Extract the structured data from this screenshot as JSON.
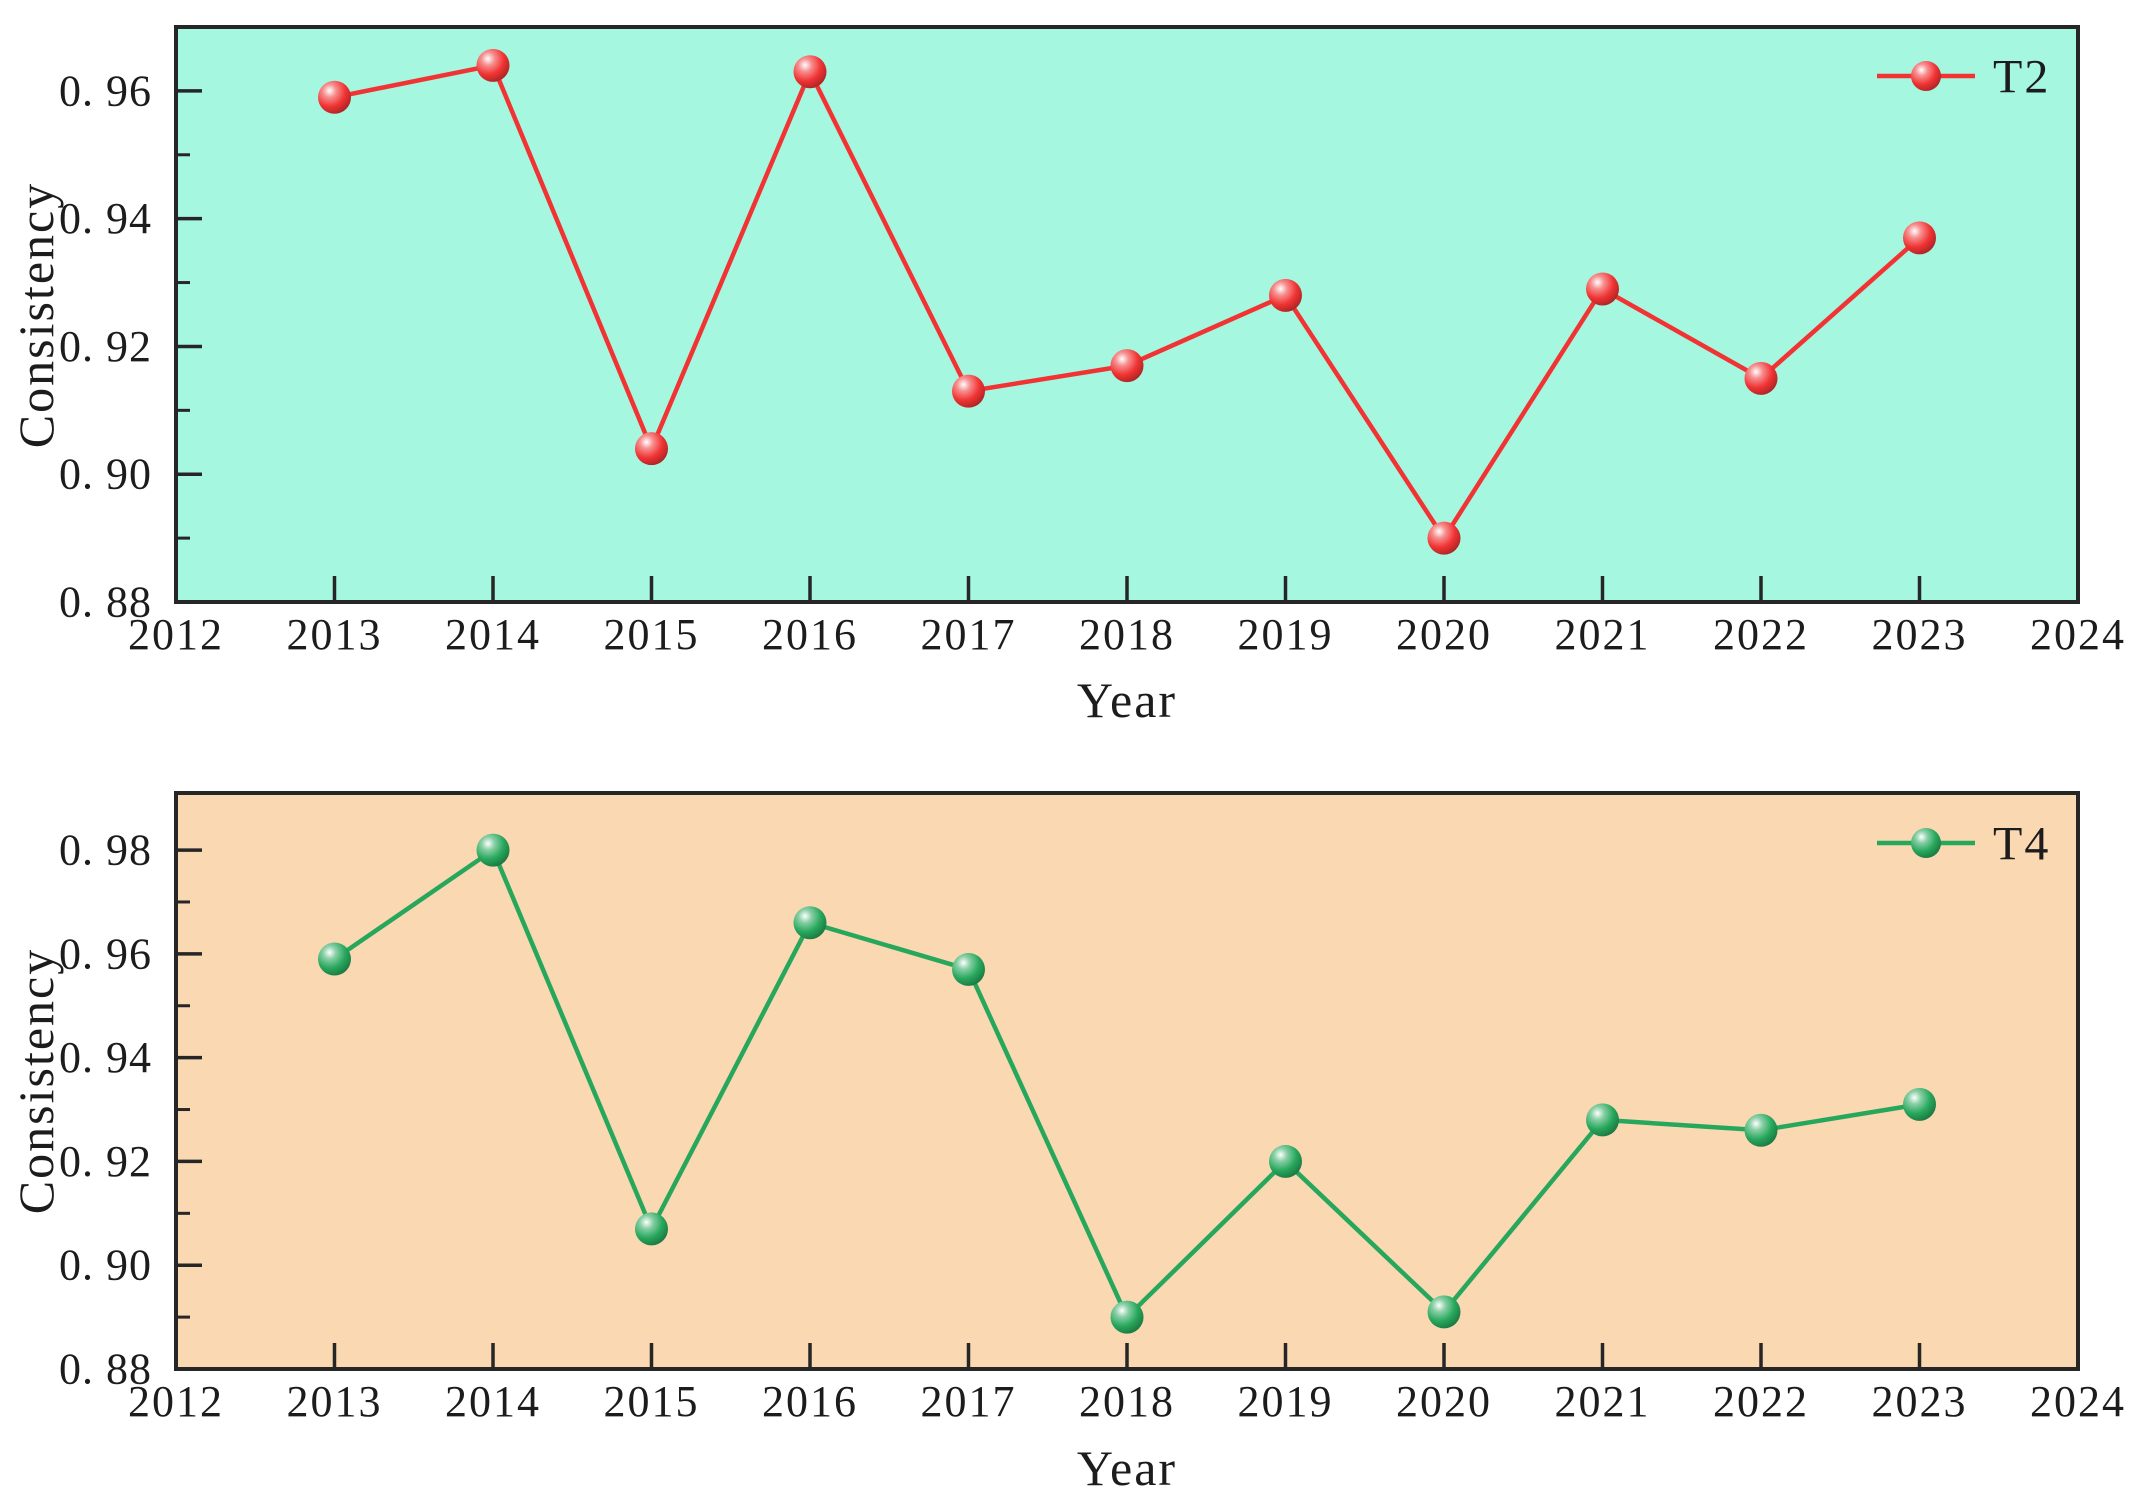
{
  "style": {
    "page_background": "#ffffff",
    "axis_color": "#262626",
    "text_color": "#1c1c1c"
  },
  "chart_data": [
    {
      "type": "line",
      "title": "",
      "xlabel": "Year",
      "ylabel": "Consistency",
      "grid": false,
      "legend_position": "top-right-inside",
      "plot_background": "#a6f7e0",
      "xlim": [
        2012,
        2024
      ],
      "ylim": [
        0.88,
        0.97
      ],
      "xticks": {
        "values": [
          2012,
          2013,
          2014,
          2015,
          2016,
          2017,
          2018,
          2019,
          2020,
          2021,
          2022,
          2023,
          2024
        ],
        "labels": [
          "2012",
          "2013",
          "2014",
          "2015",
          "2016",
          "2017",
          "2018",
          "2019",
          "2020",
          "2021",
          "2022",
          "2023",
          "2024"
        ]
      },
      "yticks": {
        "values": [
          0.88,
          0.9,
          0.92,
          0.94,
          0.96
        ],
        "labels": [
          "0. 88",
          "0. 90",
          "0. 92",
          "0. 94",
          "0. 96"
        ]
      },
      "y_minor_step": 0.01,
      "series": [
        {
          "name": "T2",
          "color": "#f13333",
          "marker": "sphere",
          "x": [
            2013,
            2014,
            2015,
            2016,
            2017,
            2018,
            2019,
            2020,
            2021,
            2022,
            2023
          ],
          "y": [
            0.959,
            0.964,
            0.904,
            0.963,
            0.913,
            0.917,
            0.928,
            0.89,
            0.929,
            0.915,
            0.937
          ]
        }
      ]
    },
    {
      "type": "line",
      "title": "",
      "xlabel": "Year",
      "ylabel": "Consistency",
      "grid": false,
      "legend_position": "top-right-inside",
      "plot_background": "#fad8b2",
      "xlim": [
        2012,
        2024
      ],
      "ylim": [
        0.88,
        0.991
      ],
      "xticks": {
        "values": [
          2012,
          2013,
          2014,
          2015,
          2016,
          2017,
          2018,
          2019,
          2020,
          2021,
          2022,
          2023,
          2024
        ],
        "labels": [
          "2012",
          "2013",
          "2014",
          "2015",
          "2016",
          "2017",
          "2018",
          "2019",
          "2020",
          "2021",
          "2022",
          "2023",
          "2024"
        ]
      },
      "yticks": {
        "values": [
          0.88,
          0.9,
          0.92,
          0.94,
          0.96,
          0.98
        ],
        "labels": [
          "0. 88",
          "0. 90",
          "0. 92",
          "0. 94",
          "0. 96",
          "0. 98"
        ]
      },
      "y_minor_step": 0.01,
      "series": [
        {
          "name": "T4",
          "color": "#27a75c",
          "marker": "sphere",
          "x": [
            2013,
            2014,
            2015,
            2016,
            2017,
            2018,
            2019,
            2020,
            2021,
            2022,
            2023
          ],
          "y": [
            0.959,
            0.98,
            0.907,
            0.966,
            0.957,
            0.89,
            0.92,
            0.891,
            0.928,
            0.926,
            0.931
          ]
        }
      ]
    }
  ]
}
